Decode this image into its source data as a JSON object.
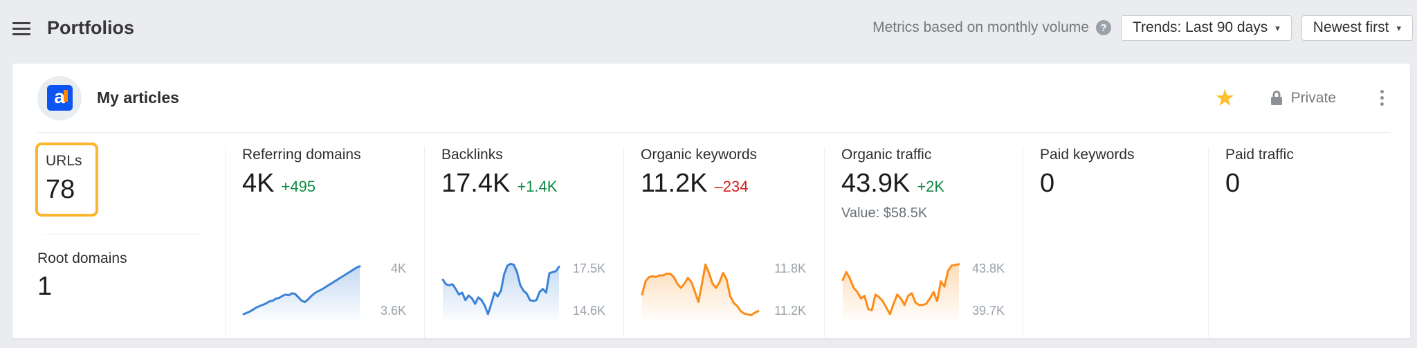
{
  "header": {
    "title": "Portfolios",
    "metrics_note": "Metrics based on monthly volume",
    "help_glyph": "?",
    "trends_button": "Trends: Last 90 days",
    "sort_button": "Newest first",
    "caret": "▾"
  },
  "portfolio": {
    "name": "My articles",
    "favicon_letter": "a",
    "star_glyph": "★",
    "visibility": "Private"
  },
  "colors": {
    "page_background": "#eaecef",
    "card_background": "#ffffff",
    "positive_green": "#0f8a43",
    "negative_red": "#d01f1f",
    "chart_blue": "#3b82d6",
    "chart_orange": "#fb8c17",
    "annotation_orange": "#fcb62d",
    "star_gold": "#fec12e",
    "brand_blue": "#0d55f0"
  },
  "metrics": {
    "urls": {
      "label": "URLs",
      "value": "78"
    },
    "root_domains": {
      "label": "Root domains",
      "value": "1"
    },
    "columns": [
      {
        "label": "Referring domains",
        "value": "4K",
        "delta": "+495",
        "delta_dir": "up",
        "chart": {
          "type": "area",
          "color": "#3b82d6",
          "y_top_label": "4K",
          "y_bottom_label": "3.6K",
          "ymin": 3.6,
          "ymax": 4.0,
          "values": [
            3.62,
            3.63,
            3.64,
            3.655,
            3.67,
            3.68,
            3.69,
            3.7,
            3.715,
            3.72,
            3.735,
            3.74,
            3.755,
            3.765,
            3.76,
            3.775,
            3.77,
            3.745,
            3.72,
            3.71,
            3.73,
            3.755,
            3.775,
            3.79,
            3.8,
            3.815,
            3.83,
            3.845,
            3.86,
            3.875,
            3.89,
            3.905,
            3.92,
            3.935,
            3.95,
            3.965,
            3.975
          ]
        }
      },
      {
        "label": "Backlinks",
        "value": "17.4K",
        "delta": "+1.4K",
        "delta_dir": "up",
        "chart": {
          "type": "area",
          "color": "#3b82d6",
          "y_top_label": "17.5K",
          "y_bottom_label": "14.6K",
          "ymin": 14.6,
          "ymax": 17.5,
          "values": [
            16.6,
            16.35,
            16.3,
            16.35,
            16.1,
            15.8,
            15.9,
            15.5,
            15.75,
            15.6,
            15.3,
            15.65,
            15.5,
            15.2,
            14.75,
            15.3,
            15.9,
            15.7,
            16.0,
            16.9,
            17.35,
            17.45,
            17.4,
            17.0,
            16.3,
            16.0,
            15.85,
            15.5,
            15.45,
            15.5,
            15.95,
            16.1,
            15.9,
            16.95,
            17.0,
            17.05,
            17.3
          ]
        }
      },
      {
        "label": "Organic keywords",
        "value": "11.2K",
        "delta": "–234",
        "delta_dir": "down",
        "chart": {
          "type": "area",
          "color": "#fb8c17",
          "y_top_label": "11.8K",
          "y_bottom_label": "11.2K",
          "ymin": 11.15,
          "ymax": 11.8,
          "values": [
            11.42,
            11.58,
            11.63,
            11.64,
            11.63,
            11.65,
            11.65,
            11.67,
            11.67,
            11.63,
            11.55,
            11.5,
            11.55,
            11.62,
            11.57,
            11.45,
            11.33,
            11.55,
            11.78,
            11.68,
            11.55,
            11.5,
            11.57,
            11.68,
            11.6,
            11.4,
            11.32,
            11.28,
            11.22,
            11.19,
            11.18,
            11.17,
            11.2,
            11.22
          ]
        }
      },
      {
        "label": "Organic traffic",
        "value": "43.9K",
        "delta": "+2K",
        "delta_dir": "up",
        "sub": "Value: $58.5K",
        "chart": {
          "type": "area",
          "color": "#fb8c17",
          "y_top_label": "43.8K",
          "y_bottom_label": "39.7K",
          "ymin": 39.7,
          "ymax": 43.8,
          "values": [
            42.5,
            43.1,
            42.6,
            41.9,
            41.6,
            41.1,
            41.3,
            40.3,
            40.2,
            41.4,
            41.2,
            40.9,
            40.4,
            39.9,
            40.7,
            41.4,
            41.1,
            40.6,
            41.3,
            41.5,
            40.8,
            40.6,
            40.6,
            40.7,
            41.1,
            41.6,
            40.9,
            42.4,
            42.0,
            43.2,
            43.6,
            43.65,
            43.7
          ]
        }
      },
      {
        "label": "Paid keywords",
        "value": "0",
        "delta": "",
        "delta_dir": "",
        "chart": null
      },
      {
        "label": "Paid traffic",
        "value": "0",
        "delta": "",
        "delta_dir": "",
        "chart": null
      }
    ]
  }
}
